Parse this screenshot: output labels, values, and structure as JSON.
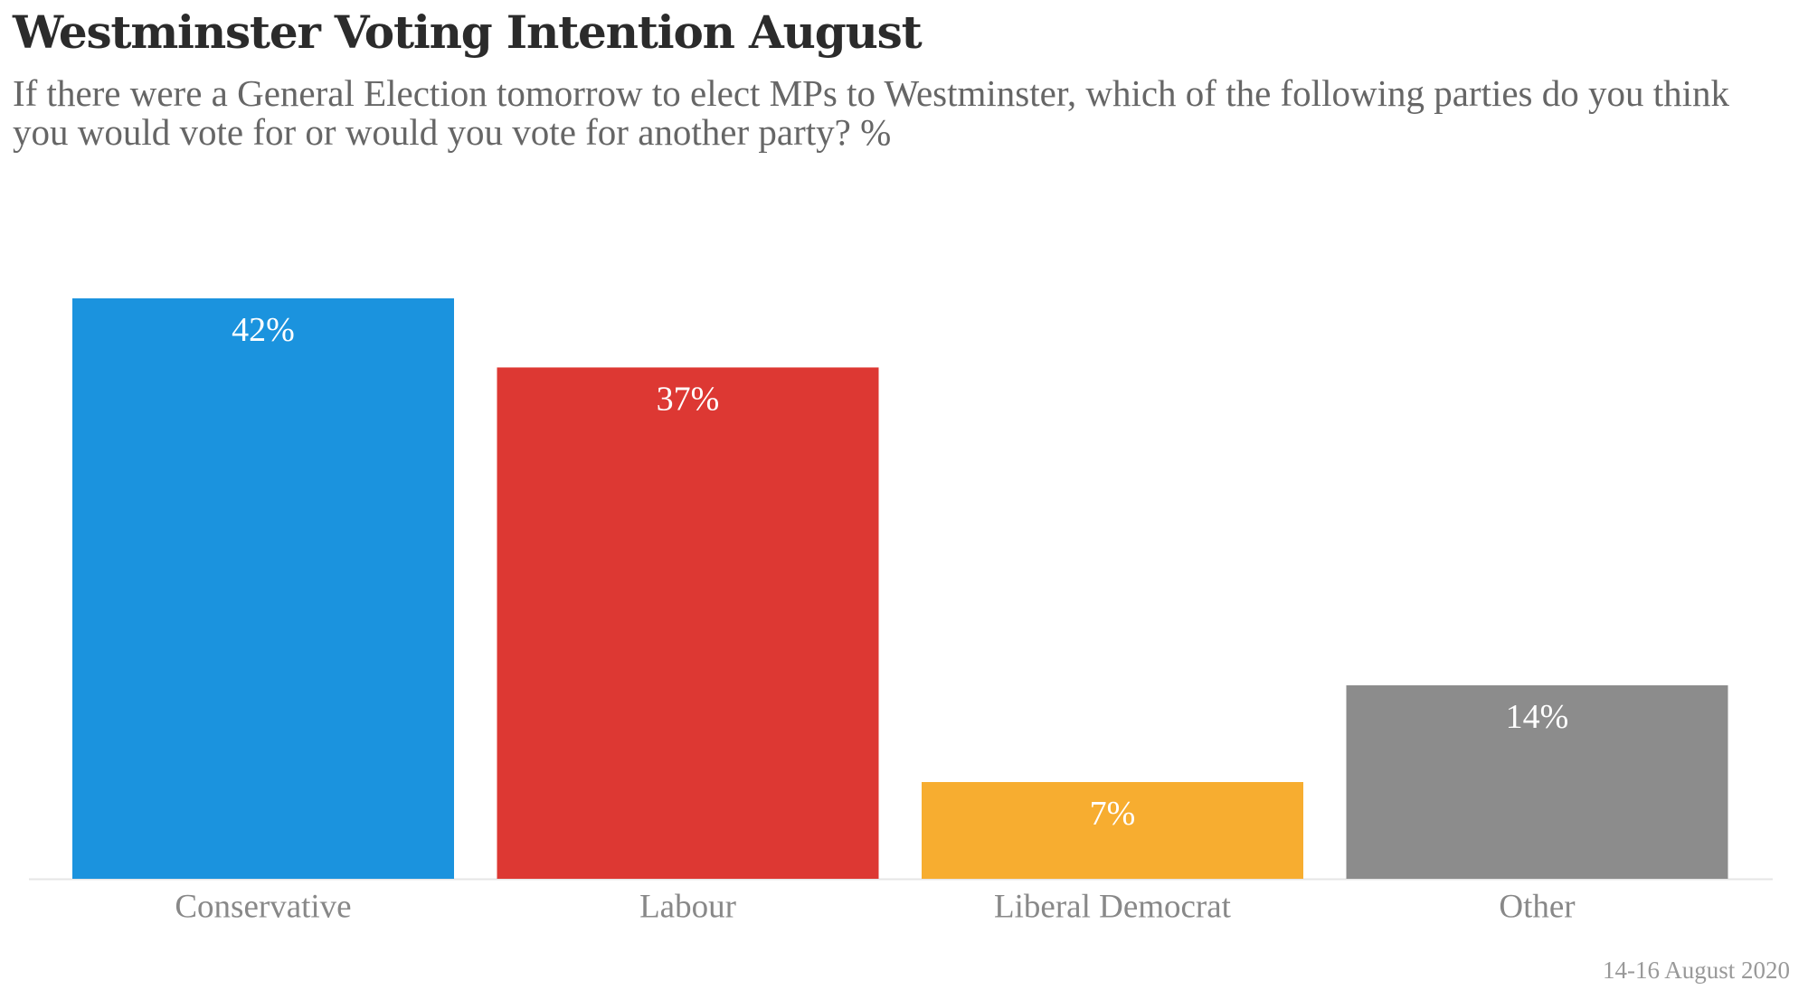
{
  "title": "Westminster Voting Intention August",
  "subtitle": "If there were a General Election tomorrow to elect MPs to Westminster, which of the following parties do you think you would vote for or would you vote for another party? %",
  "footnote": "14-16 August 2020",
  "chart_data": {
    "type": "bar",
    "categories": [
      "Conservative",
      "Labour",
      "Liberal Democrat",
      "Other"
    ],
    "values": [
      42,
      37,
      7,
      14
    ],
    "data_labels": [
      "42%",
      "37%",
      "7%",
      "14%"
    ],
    "colors": [
      "#1b93de",
      "#dd3833",
      "#f7ad30",
      "#8c8c8c"
    ],
    "ylim": [
      0,
      42
    ],
    "xlabel": "",
    "ylabel": "",
    "grid": false,
    "legend": "none"
  }
}
